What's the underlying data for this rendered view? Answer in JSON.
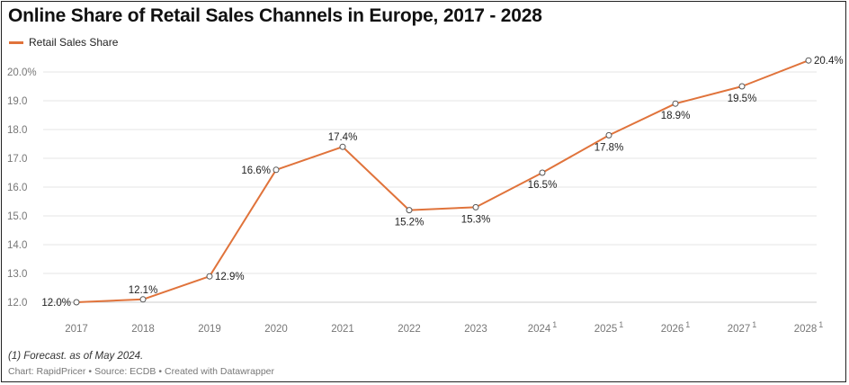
{
  "title": "Online Share of Retail Sales Channels in Europe, 2017 - 2028",
  "legend": {
    "label": "Retail Sales Share"
  },
  "colors": {
    "line": "#e0733b",
    "grid": "#e6e6e6",
    "axis_text": "#777777",
    "label_text": "#222222"
  },
  "chart_data": {
    "type": "line",
    "title": "Online Share of Retail Sales Channels in Europe, 2017 - 2028",
    "xlabel": "",
    "ylabel": "",
    "categories": [
      "2017",
      "2018",
      "2019",
      "2020",
      "2021",
      "2022",
      "2023",
      "2024",
      "2025",
      "2026",
      "2027",
      "2028"
    ],
    "category_superscripts": [
      "",
      "",
      "",
      "",
      "",
      "",
      "",
      "1",
      "1",
      "1",
      "1",
      "1"
    ],
    "series": [
      {
        "name": "Retail Sales Share",
        "values": [
          12.0,
          12.1,
          12.9,
          16.6,
          17.4,
          15.2,
          15.3,
          16.5,
          17.8,
          18.9,
          19.5,
          20.4
        ]
      }
    ],
    "data_labels": [
      "12.0%",
      "12.1%",
      "12.9%",
      "16.6%",
      "17.4%",
      "15.2%",
      "15.3%",
      "16.5%",
      "17.8%",
      "18.9%",
      "19.5%",
      "20.4%"
    ],
    "ylim": [
      12.0,
      20.0
    ],
    "yticks": [
      12.0,
      13.0,
      14.0,
      15.0,
      16.0,
      17.0,
      18.0,
      19.0,
      20.0
    ],
    "ytick_labels": [
      "12.0",
      "13.0",
      "14.0",
      "15.0",
      "16.0",
      "17.0",
      "18.0",
      "19.0",
      "20.0%"
    ],
    "grid": true,
    "legend_position": "top-left"
  },
  "footnote": "(1) Forecast. as of May 2024.",
  "credits": {
    "chart": "Chart: RapidPricer",
    "source": "Source: ECDB",
    "tool": "Created with Datawrapper",
    "separator": "•"
  }
}
